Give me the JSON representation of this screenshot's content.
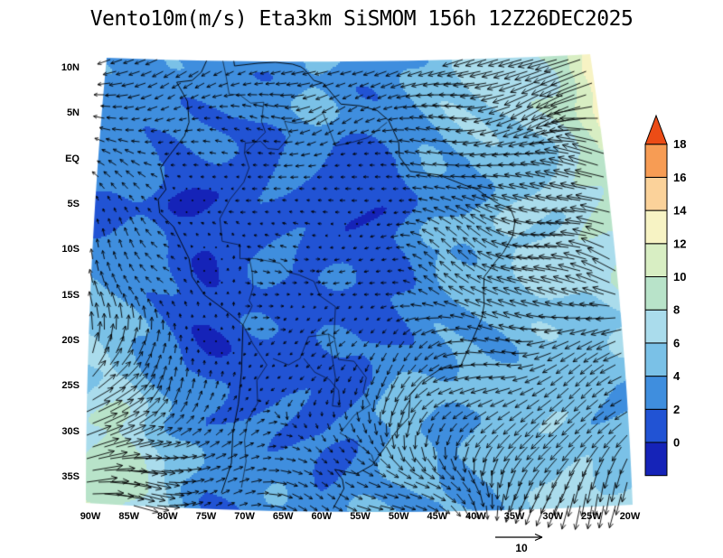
{
  "header": {
    "title": "Vento10m(m/s) Eta3km SiSMOM 156h 12Z26DEC2025"
  },
  "chart_data": {
    "type": "heatmap",
    "subtype": "wind-vector-map",
    "title": "Vento10m(m/s) Eta3km SiSMOM 156h 12Z26DEC2025",
    "meta": {
      "variable": "Vento10m(m/s)",
      "model": "Eta3km",
      "system": "SiSMOM",
      "forecast_hour": "156h",
      "valid_time": "12Z26DEC2025"
    },
    "xlabel": "",
    "ylabel": "",
    "x_ticks": [
      "90W",
      "85W",
      "80W",
      "75W",
      "70W",
      "65W",
      "60W",
      "55W",
      "50W",
      "45W",
      "40W",
      "35W",
      "30W",
      "25W",
      "20W"
    ],
    "y_ticks": [
      "10N",
      "5N",
      "EQ",
      "5S",
      "10S",
      "15S",
      "20S",
      "25S",
      "30S",
      "35S"
    ],
    "lon_values": [
      -90,
      -85,
      -80,
      -75,
      -70,
      -65,
      -60,
      -55,
      -50,
      -45,
      -40,
      -35,
      -30,
      -25,
      -20
    ],
    "lat_values": [
      10,
      5,
      0,
      -5,
      -10,
      -15,
      -20,
      -25,
      -30,
      -35
    ],
    "colorbar": {
      "position": "right",
      "levels": [
        0,
        2,
        4,
        6,
        8,
        10,
        12,
        14,
        16,
        18
      ],
      "labels": [
        "0",
        "2",
        "4",
        "6",
        "8",
        "10",
        "12",
        "14",
        "16",
        "18"
      ],
      "colors": [
        "#1523b8",
        "#2153d4",
        "#3f8ede",
        "#7ac1e7",
        "#aadcec",
        "#b8e3c9",
        "#d8eec3",
        "#f7f3c4",
        "#fbd29a",
        "#f79c54",
        "#ec4c16"
      ],
      "extend_top": true
    },
    "reference_vector": {
      "value": 10,
      "label": "10"
    },
    "units": "m/s",
    "speed_grid": [
      [
        5,
        4,
        4,
        3,
        3,
        4,
        4,
        4,
        4,
        5,
        6,
        7,
        9,
        13,
        16
      ],
      [
        4,
        3,
        2,
        2,
        2,
        3,
        3,
        3,
        3,
        4,
        5,
        6,
        8,
        10,
        14
      ],
      [
        3,
        2,
        1,
        1,
        1,
        2,
        2,
        2,
        2,
        3,
        4,
        5,
        7,
        9,
        11
      ],
      [
        2,
        2,
        1,
        1,
        1,
        1,
        1,
        2,
        2,
        3,
        5,
        6,
        6,
        8,
        10
      ],
      [
        3,
        2,
        2,
        1,
        1,
        1,
        1,
        1,
        2,
        3,
        5,
        6,
        6,
        7,
        8
      ],
      [
        4,
        3,
        2,
        1,
        1,
        1,
        1,
        1,
        2,
        4,
        5,
        6,
        6,
        6,
        7
      ],
      [
        6,
        5,
        3,
        1,
        1,
        1,
        2,
        2,
        3,
        4,
        5,
        5,
        5,
        5,
        6
      ],
      [
        7,
        6,
        4,
        2,
        1,
        2,
        2,
        3,
        4,
        4,
        4,
        4,
        5,
        4,
        4
      ],
      [
        8,
        7,
        5,
        2,
        2,
        2,
        2,
        3,
        4,
        3,
        4,
        5,
        6,
        5,
        5
      ],
      [
        9,
        8,
        6,
        3,
        3,
        3,
        3,
        4,
        4,
        4,
        5,
        6,
        6,
        7,
        7
      ]
    ],
    "u_grid": [
      [
        -3,
        -3,
        -2,
        -2,
        -2,
        -3,
        -4,
        -5,
        -6,
        -6,
        -7,
        -7,
        -7,
        -8,
        -8
      ],
      [
        -2,
        -2,
        -1,
        -1,
        -2,
        -2,
        -3,
        -4,
        -5,
        -6,
        -6,
        -7,
        -7,
        -8,
        -9
      ],
      [
        -2,
        -1,
        -1,
        -1,
        -1,
        -1,
        -2,
        -2,
        -3,
        -4,
        -5,
        -6,
        -7,
        -8,
        -8
      ],
      [
        -1,
        -1,
        -1,
        -1,
        0,
        -1,
        -1,
        -1,
        -2,
        -3,
        -4,
        -5,
        -6,
        -7,
        -7
      ],
      [
        -1,
        -1,
        -1,
        0,
        0,
        0,
        0,
        -1,
        -1,
        -2,
        -4,
        -5,
        -5,
        -6,
        -6
      ],
      [
        -1,
        -1,
        -1,
        0,
        0,
        0,
        0,
        0,
        -1,
        -2,
        -4,
        -4,
        -5,
        -5,
        -5
      ],
      [
        0,
        0,
        0,
        0,
        0,
        0,
        -1,
        -1,
        -1,
        -2,
        -3,
        -4,
        -4,
        -4,
        -4
      ],
      [
        2,
        2,
        1,
        1,
        0,
        -1,
        -1,
        -1,
        -2,
        -3,
        -3,
        -3,
        -3,
        -3,
        -3
      ],
      [
        5,
        4,
        3,
        2,
        1,
        1,
        1,
        1,
        0,
        -1,
        -2,
        -2,
        -2,
        -2,
        -2
      ],
      [
        8,
        7,
        6,
        4,
        3,
        3,
        3,
        4,
        3,
        2,
        1,
        0,
        -1,
        -1,
        -1
      ]
    ],
    "v_grid": [
      [
        -1,
        -1,
        -1,
        -1,
        -1,
        -1,
        -1,
        -1,
        -2,
        -2,
        -2,
        -2,
        -2,
        -3,
        -3
      ],
      [
        0,
        0,
        0,
        0,
        0,
        0,
        -1,
        -1,
        -1,
        -1,
        -1,
        -1,
        -2,
        -2,
        -2
      ],
      [
        1,
        1,
        0,
        0,
        0,
        0,
        0,
        0,
        0,
        0,
        0,
        1,
        1,
        1,
        1
      ],
      [
        2,
        1,
        1,
        0,
        0,
        0,
        0,
        0,
        0,
        1,
        1,
        1,
        2,
        2,
        2
      ],
      [
        2,
        2,
        1,
        1,
        0,
        0,
        0,
        0,
        0,
        1,
        2,
        2,
        2,
        2,
        2
      ],
      [
        3,
        2,
        1,
        1,
        0,
        0,
        0,
        0,
        0,
        1,
        2,
        2,
        2,
        1,
        1
      ],
      [
        4,
        3,
        2,
        1,
        0,
        0,
        -1,
        -1,
        -1,
        -1,
        0,
        0,
        -1,
        -1,
        -1
      ],
      [
        3,
        3,
        3,
        2,
        0,
        -1,
        -2,
        -2,
        -2,
        -2,
        -2,
        -1,
        -1,
        -2,
        -2
      ],
      [
        2,
        2,
        2,
        2,
        1,
        0,
        -2,
        -2,
        -3,
        -3,
        -2,
        -2,
        -2,
        -2,
        -2
      ],
      [
        0,
        0,
        1,
        1,
        0,
        -1,
        -1,
        -1,
        -2,
        -2,
        -2,
        -2,
        -2,
        -2,
        -2
      ]
    ],
    "coastline": [
      [
        [
          -73,
          -36.8
        ],
        [
          -71.7,
          -33.5
        ],
        [
          -71.5,
          -30
        ],
        [
          -70.8,
          -27
        ],
        [
          -70.4,
          -23.5
        ],
        [
          -70.2,
          -18.3
        ],
        [
          -72,
          -17
        ],
        [
          -75.2,
          -15
        ],
        [
          -76.8,
          -13
        ],
        [
          -77.2,
          -11
        ],
        [
          -79.2,
          -7.5
        ],
        [
          -81,
          -6
        ],
        [
          -81.2,
          -4.5
        ],
        [
          -80.2,
          -3.4
        ],
        [
          -80.9,
          -1
        ],
        [
          -79.7,
          0.4
        ],
        [
          -77.8,
          2.5
        ],
        [
          -77.2,
          4
        ],
        [
          -77.4,
          6.3
        ],
        [
          -78.8,
          8.4
        ],
        [
          -76.8,
          8.6
        ],
        [
          -75.6,
          9.5
        ],
        [
          -74.8,
          11
        ],
        [
          -71.6,
          12
        ],
        [
          -71.3,
          10.2
        ],
        [
          -68.2,
          10.5
        ],
        [
          -66,
          10.6
        ],
        [
          -63.8,
          10.4
        ],
        [
          -62.7,
          10.1
        ],
        [
          -62.2,
          9.8
        ],
        [
          -61,
          8.6
        ],
        [
          -59.8,
          8.3
        ],
        [
          -57.5,
          6
        ],
        [
          -55,
          5.8
        ],
        [
          -52.8,
          5.3
        ],
        [
          -51.3,
          4.2
        ],
        [
          -50,
          1.8
        ],
        [
          -49.9,
          0.2
        ],
        [
          -48.5,
          -1.4
        ],
        [
          -44.8,
          -1.8
        ],
        [
          -43,
          -2.4
        ],
        [
          -41.5,
          -2.9
        ],
        [
          -39.8,
          -3.4
        ],
        [
          -38.5,
          -4.2
        ],
        [
          -37,
          -5
        ],
        [
          -35.5,
          -5.5
        ],
        [
          -34.9,
          -6.8
        ],
        [
          -35.2,
          -8.5
        ],
        [
          -36.4,
          -10.3
        ],
        [
          -37.4,
          -11.3
        ],
        [
          -38.9,
          -13
        ],
        [
          -39,
          -14.5
        ],
        [
          -38.9,
          -16
        ],
        [
          -39.2,
          -17.5
        ],
        [
          -40.2,
          -19.5
        ],
        [
          -41,
          -21
        ],
        [
          -42,
          -22.9
        ],
        [
          -44.5,
          -23.1
        ],
        [
          -47,
          -24.5
        ],
        [
          -48.5,
          -26
        ],
        [
          -48.7,
          -28.5
        ],
        [
          -50.3,
          -30
        ],
        [
          -51.8,
          -31.8
        ],
        [
          -53.4,
          -33.7
        ],
        [
          -55.5,
          -34.7
        ],
        [
          -57.1,
          -34.4
        ],
        [
          -58.3,
          -34.2
        ],
        [
          -57.3,
          -35.3
        ],
        [
          -57.1,
          -36.3
        ],
        [
          -58.5,
          -38.5
        ]
      ]
    ],
    "borders": [
      [
        [
          -51.5,
          4
        ],
        [
          -54,
          2.3
        ],
        [
          -56,
          1.8
        ],
        [
          -58.2,
          1.4
        ],
        [
          -59.8,
          5
        ],
        [
          -61.4,
          4.2
        ],
        [
          -63.4,
          3.9
        ],
        [
          -64.8,
          4.1
        ],
        [
          -64.1,
          2.5
        ],
        [
          -65.6,
          1
        ],
        [
          -67,
          1.1
        ],
        [
          -67.9,
          1.9
        ],
        [
          -69.9,
          1.7
        ],
        [
          -70,
          0.6
        ],
        [
          -69.4,
          -1
        ],
        [
          -70.1,
          -2.6
        ],
        [
          -71.9,
          -4.5
        ],
        [
          -73.2,
          -6.6
        ],
        [
          -72.9,
          -9.1
        ],
        [
          -70.6,
          -9.5
        ],
        [
          -70.6,
          -11
        ],
        [
          -68.7,
          -11
        ],
        [
          -65.4,
          -11.5
        ],
        [
          -64.3,
          -12.5
        ],
        [
          -62.9,
          -12.8
        ],
        [
          -61,
          -13.5
        ],
        [
          -60.2,
          -15.1
        ],
        [
          -58.2,
          -16.3
        ],
        [
          -58.4,
          -19.6
        ],
        [
          -57.8,
          -22.1
        ],
        [
          -55.8,
          -22.3
        ],
        [
          -54.2,
          -24.1
        ],
        [
          -54.6,
          -25.7
        ],
        [
          -53.7,
          -27.1
        ],
        [
          -55.7,
          -28.2
        ],
        [
          -57.6,
          -30.2
        ],
        [
          -55.9,
          -31
        ],
        [
          -53.5,
          -32.6
        ],
        [
          -53.1,
          -33.7
        ]
      ],
      [
        [
          -70.2,
          -18.3
        ],
        [
          -68.9,
          -20.4
        ],
        [
          -67.1,
          -22.7
        ],
        [
          -68.4,
          -24.4
        ],
        [
          -68.3,
          -26.9
        ],
        [
          -69.6,
          -28.8
        ],
        [
          -70,
          -31
        ],
        [
          -69.8,
          -33.3
        ],
        [
          -70.4,
          -36.2
        ]
      ],
      [
        [
          -72.9,
          11.1
        ],
        [
          -72.4,
          9.1
        ],
        [
          -72,
          7.1
        ],
        [
          -70.6,
          7
        ],
        [
          -69.2,
          6.1
        ],
        [
          -67.5,
          6.2
        ],
        [
          -67.8,
          4.1
        ],
        [
          -67.3,
          2.9
        ],
        [
          -70,
          0.6
        ]
      ],
      [
        [
          -66.3,
          -22
        ],
        [
          -64.3,
          -22.7
        ],
        [
          -62.8,
          -22
        ],
        [
          -61.7,
          -19.6
        ],
        [
          -59.1,
          -19.3
        ],
        [
          -58.2,
          -19.8
        ]
      ],
      [
        [
          -62.3,
          -22
        ],
        [
          -60.9,
          -23.5
        ],
        [
          -59,
          -24.3
        ],
        [
          -57.8,
          -25.5
        ],
        [
          -57.6,
          -27.3
        ],
        [
          -58.6,
          -27.2
        ],
        [
          -58.2,
          -24.1
        ],
        [
          -59.1,
          -19.3
        ]
      ],
      [
        [
          -69.4,
          -10.9
        ],
        [
          -69,
          -12.5
        ],
        [
          -68.9,
          -14.2
        ],
        [
          -69.4,
          -15.6
        ],
        [
          -69,
          -16.2
        ],
        [
          -70.2,
          -18.3
        ]
      ]
    ]
  }
}
